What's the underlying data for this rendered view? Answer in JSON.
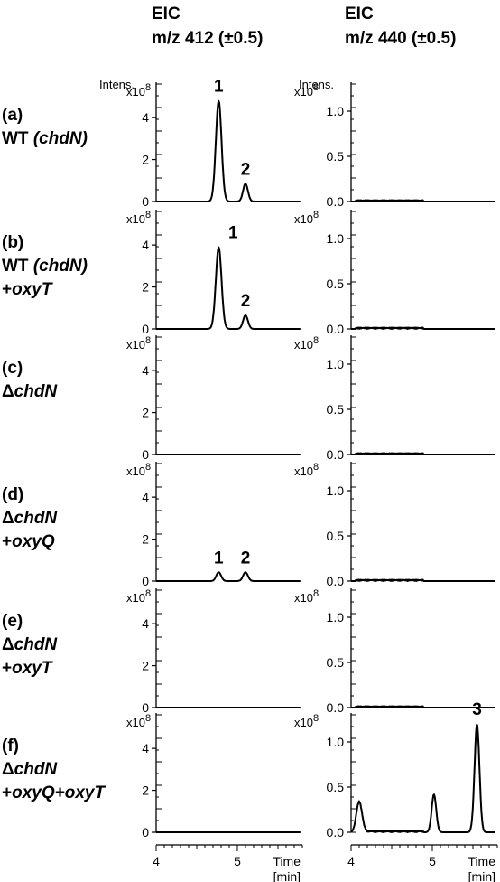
{
  "chart_data": {
    "type": "line",
    "columns": [
      {
        "title_line1": "EIC",
        "title_line2": "m/z 412 (±0.5)",
        "y_ticks": [
          "0",
          "2",
          "4"
        ],
        "y_tick_values": [
          0,
          2,
          4
        ],
        "ylim": [
          0,
          5.6
        ]
      },
      {
        "title_line1": "EIC",
        "title_line2": "m/z 440 (±0.5)",
        "y_ticks": [
          "0.0",
          "0.5",
          "1.0"
        ],
        "y_tick_values": [
          0,
          0.5,
          1.0
        ],
        "ylim": [
          0,
          1.3
        ]
      }
    ],
    "intens_label": "Intens.",
    "exp_base": "x10",
    "exp_power": "8",
    "xlabel_line1": "Time",
    "xlabel_line2": "[min]",
    "x_ticks": [
      "4",
      "5"
    ],
    "x_tick_values": [
      4,
      5
    ],
    "xlim": [
      4,
      5.8
    ],
    "rows": [
      {
        "id": "a",
        "label_lines": [
          {
            "t": "(a)"
          },
          {
            "t": "WT ",
            "i": "(chdN)"
          }
        ],
        "c412": [
          {
            "label": "1",
            "x": 4.77,
            "h": 4.8,
            "w": 0.035
          },
          {
            "label": "2",
            "x": 5.1,
            "h": 0.85,
            "w": 0.03
          }
        ],
        "c440": []
      },
      {
        "id": "b",
        "label_lines": [
          {
            "t": "(b)"
          },
          {
            "t": "WT ",
            "i": "(chdN)"
          },
          {
            "t": "+",
            "i": "oxyT"
          }
        ],
        "c412": [
          {
            "label": "1",
            "x": 4.77,
            "h": 3.9,
            "w": 0.035
          },
          {
            "label": "2",
            "x": 5.1,
            "h": 0.65,
            "w": 0.03
          }
        ],
        "c440": []
      },
      {
        "id": "c",
        "label_lines": [
          {
            "t": "(c)"
          },
          {
            "t": "Δ",
            "i": "chdN"
          }
        ],
        "c412": [],
        "c440": []
      },
      {
        "id": "d",
        "label_lines": [
          {
            "t": "(d)"
          },
          {
            "t": "Δ",
            "i": "chdN"
          },
          {
            "t": "+",
            "i": "oxyQ"
          }
        ],
        "c412": [
          {
            "label": "1",
            "x": 4.77,
            "h": 0.42,
            "w": 0.03
          },
          {
            "label": "2",
            "x": 5.1,
            "h": 0.42,
            "w": 0.03
          }
        ],
        "c440": []
      },
      {
        "id": "e",
        "label_lines": [
          {
            "t": "(e)"
          },
          {
            "t": "Δ",
            "i": "chdN"
          },
          {
            "t": "+",
            "i": "oxyT"
          }
        ],
        "c412": [],
        "c440": []
      },
      {
        "id": "f",
        "label_lines": [
          {
            "t": "(f)"
          },
          {
            "t": "Δ",
            "i": "chdN"
          },
          {
            "t": "+",
            "i": "oxyQ+oxyT"
          }
        ],
        "c412": [],
        "c440": [
          {
            "label": "",
            "x": 4.1,
            "h": 0.33,
            "w": 0.035
          },
          {
            "label": "",
            "x": 5.02,
            "h": 0.42,
            "w": 0.028
          },
          {
            "label": "3",
            "x": 5.55,
            "h": 1.2,
            "w": 0.03
          }
        ]
      }
    ]
  }
}
